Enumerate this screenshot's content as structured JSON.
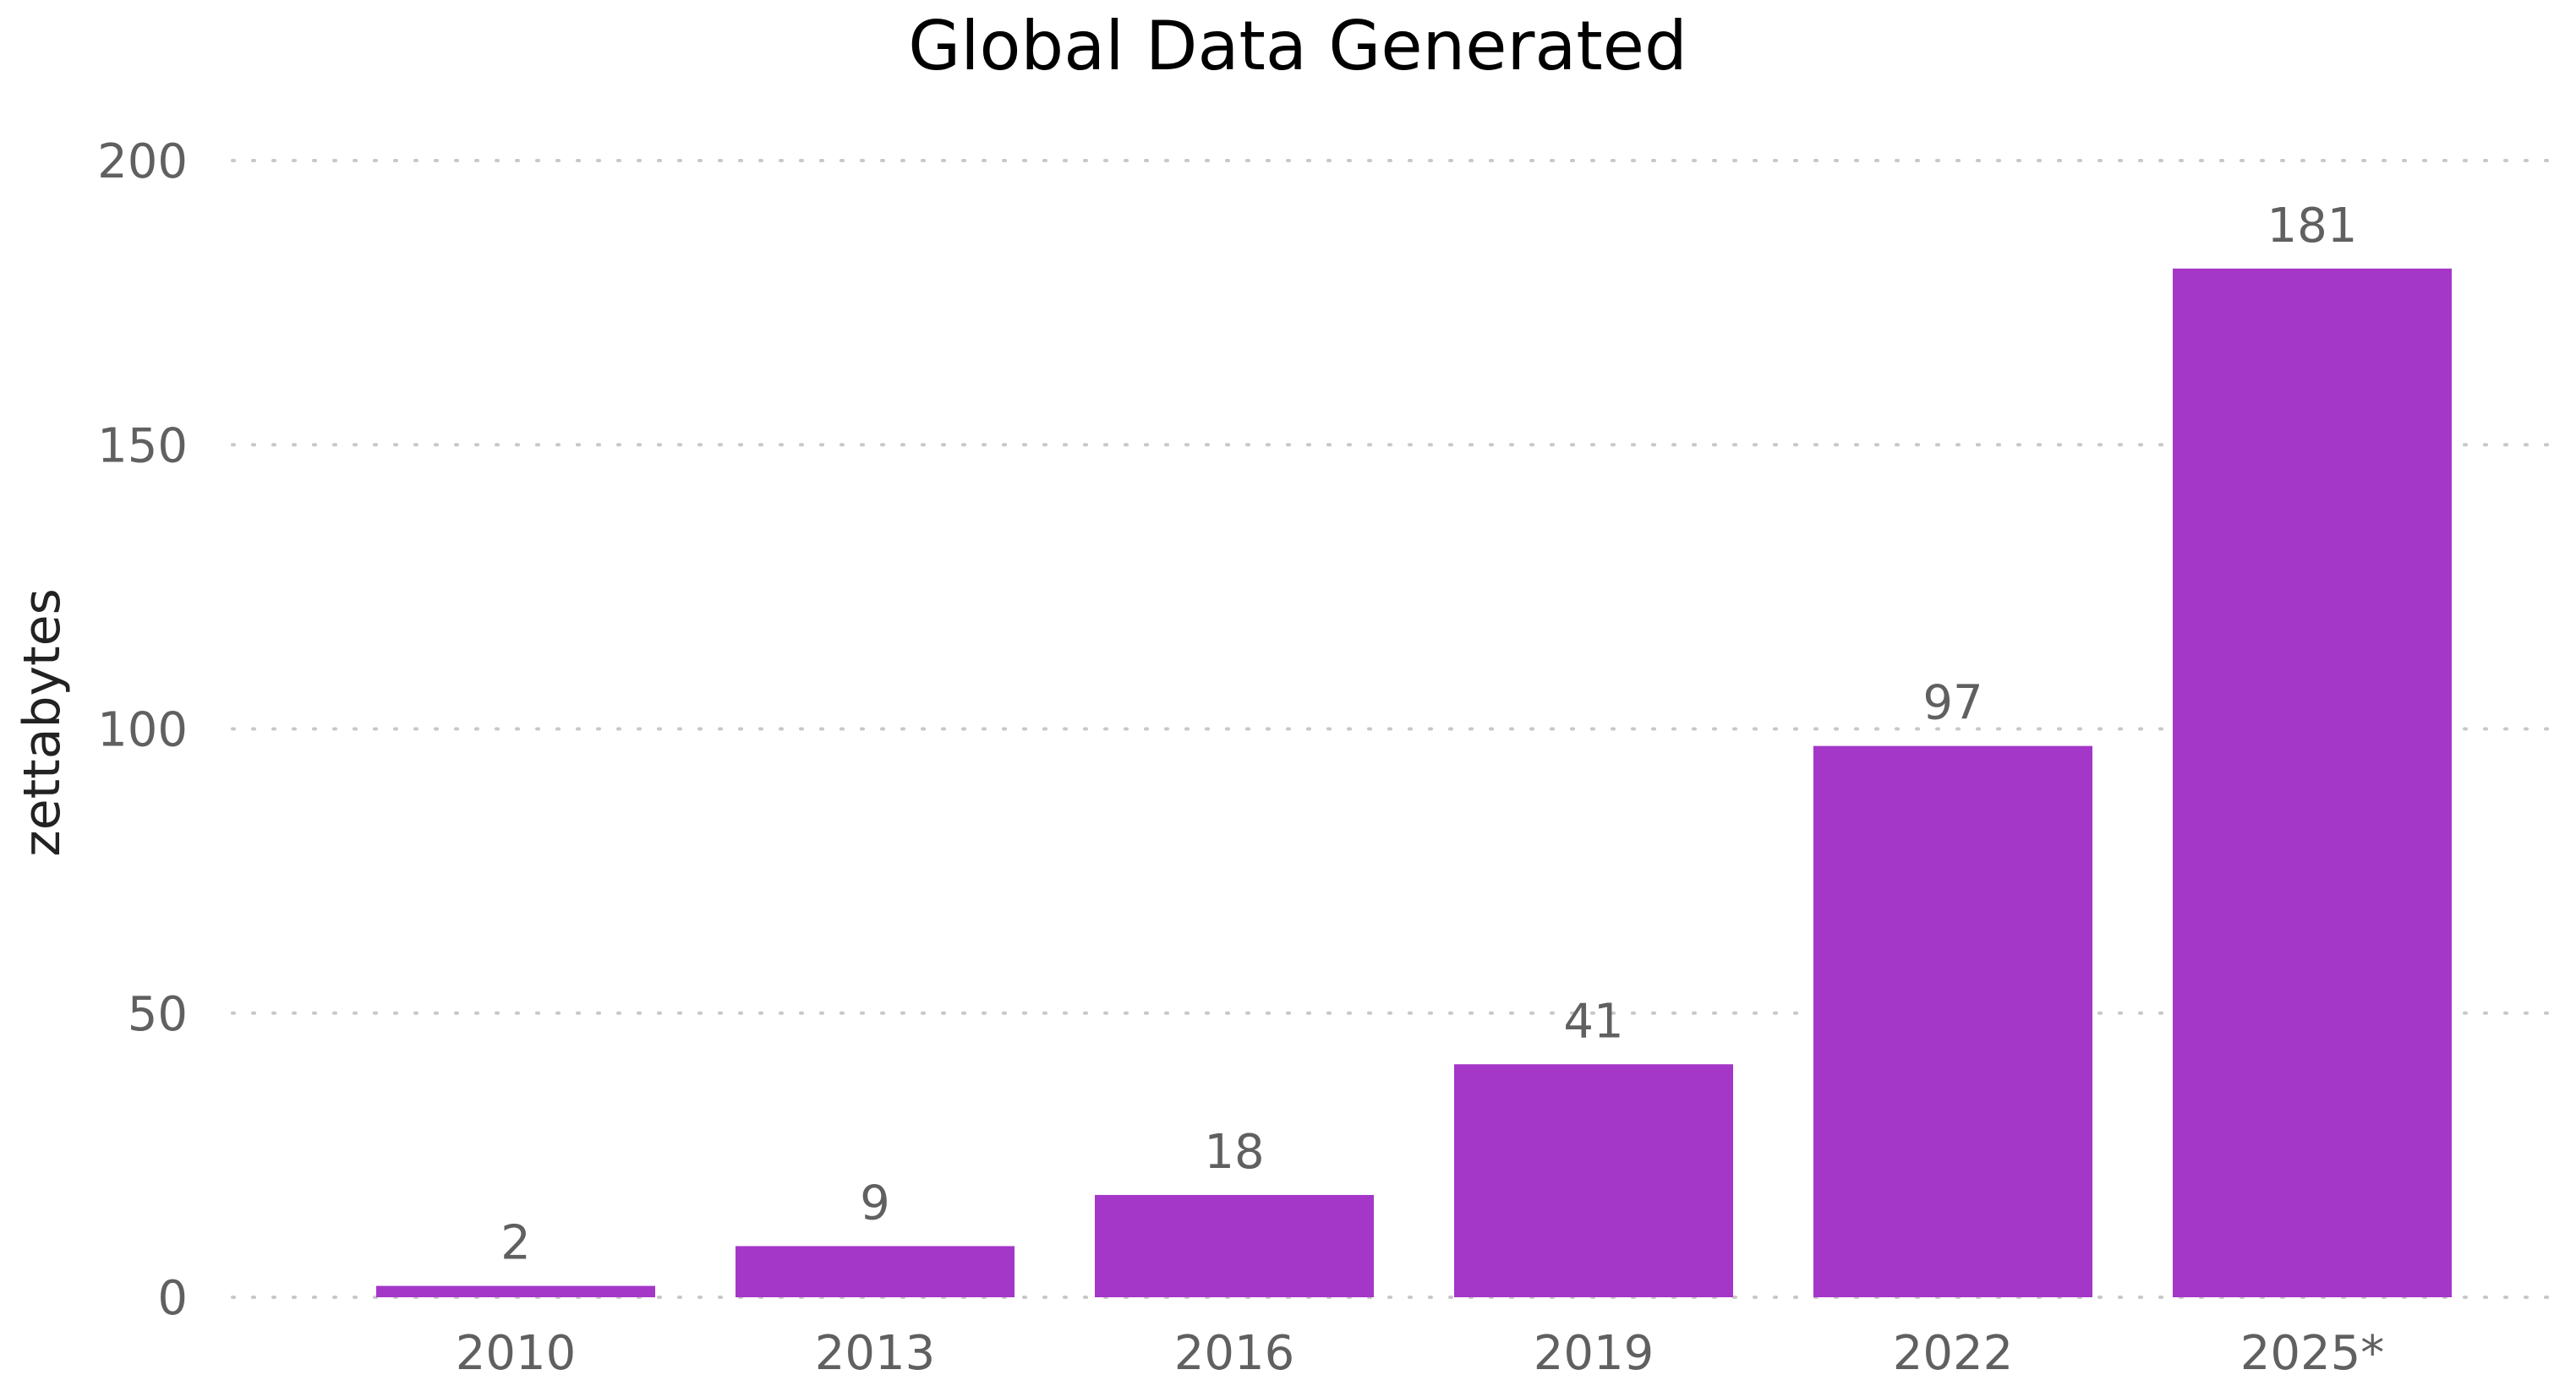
{
  "chart_data": {
    "type": "bar",
    "title": "Global Data Generated",
    "xlabel": "",
    "ylabel": "zettabytes",
    "categories": [
      "2010",
      "2013",
      "2016",
      "2019",
      "2022",
      "2025*"
    ],
    "values": [
      2,
      9,
      18,
      41,
      97,
      181
    ],
    "data_labels": [
      "2",
      "9",
      "18",
      "41",
      "97",
      "181"
    ],
    "ylim": [
      0,
      200
    ],
    "yticks": [
      0,
      50,
      100,
      150,
      200
    ],
    "ytick_labels": [
      "0",
      "50",
      "100",
      "150",
      "200"
    ],
    "grid": true,
    "grid_style": "dotted",
    "legend": "none",
    "colors": {
      "bar": "#A437C8",
      "title": "#000000",
      "axis_label": "#222222",
      "tick_label": "#606060",
      "data_label": "#606060",
      "grid": "#c8c8c8"
    }
  }
}
